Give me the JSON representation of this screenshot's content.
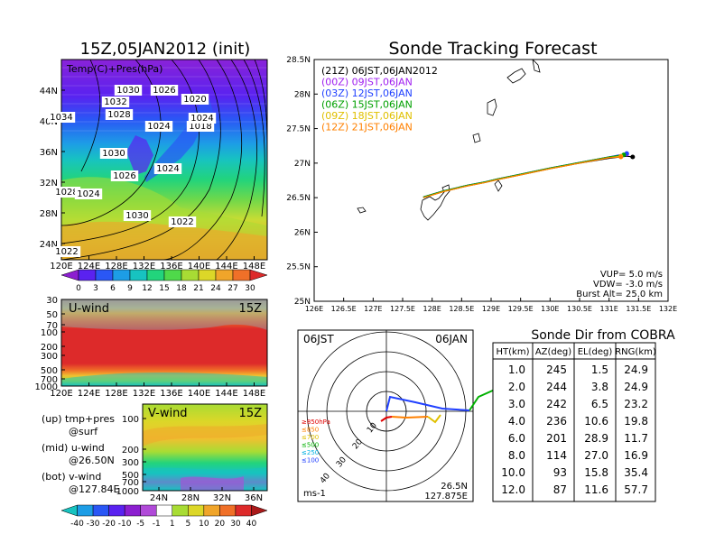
{
  "title_main": "15Z,05JAN2012 (init)",
  "title_track": "Sonde Tracking Forecast",
  "panel_surface": {
    "label": "Temp(C)+Pres(hPa)",
    "lat_ticks": [
      "44N",
      "40N",
      "36N",
      "32N",
      "28N",
      "24N"
    ],
    "lon_ticks": [
      "120E",
      "124E",
      "128E",
      "132E",
      "136E",
      "140E",
      "144E",
      "148E"
    ],
    "isobar_labels": [
      "1030",
      "1026",
      "1020",
      "1032",
      "1028",
      "1034",
      "1024",
      "1018",
      "1030",
      "1026",
      "1024",
      "1030",
      "1028",
      "1024",
      "1024",
      "1022",
      "1022"
    ],
    "colorbar_ticks": [
      "0",
      "3",
      "6",
      "9",
      "12",
      "15",
      "18",
      "21",
      "24",
      "27",
      "30"
    ],
    "colorbar_colors": [
      "#8c1fd0",
      "#5a22f0",
      "#2a57f5",
      "#1d9de6",
      "#17c3c0",
      "#22d47c",
      "#4fd94a",
      "#a8dc34",
      "#dcd728",
      "#f0a52a",
      "#f07028",
      "#dd2a2a"
    ]
  },
  "panel_uwind": {
    "label": "U-wind",
    "time": "15Z",
    "y_ticks": [
      "30",
      "50",
      "70",
      "100",
      "200",
      "300",
      "500",
      "700",
      "1000"
    ],
    "lon_ticks": [
      "120E",
      "124E",
      "128E",
      "132E",
      "136E",
      "140E",
      "144E",
      "148E"
    ]
  },
  "panel_vwind": {
    "label": "V-wind",
    "time": "15Z",
    "y_ticks": [
      "100",
      "200",
      "300",
      "500",
      "700",
      "1000"
    ],
    "lat_ticks": [
      "24N",
      "28N",
      "32N",
      "36N"
    ],
    "colorbar_ticks": [
      "-40",
      "-30",
      "-20",
      "-10",
      "-5",
      "-1",
      "1",
      "5",
      "10",
      "20",
      "30",
      "40"
    ],
    "colorbar_colors": [
      "#17c3c0",
      "#1d9de6",
      "#2a57f5",
      "#5a22f0",
      "#8c1fd0",
      "#b04ad8",
      "#ffffff",
      "#a8dc34",
      "#dcd728",
      "#f0a52a",
      "#f07028",
      "#dd2a2a",
      "#aa1a1a"
    ]
  },
  "side_notes": [
    {
      "a": "(up) tmp+pres",
      "b": "@surf"
    },
    {
      "a": "(mid) u-wind",
      "b": "@26.50N"
    },
    {
      "a": "(bot) v-wind",
      "b": "@127.84E"
    }
  ],
  "track_legend": [
    {
      "text": "(21Z) 06JST,06JAN2012",
      "color": "#000000"
    },
    {
      "text": "(00Z) 09JST,06JAN",
      "color": "#a020f0"
    },
    {
      "text": "(03Z) 12JST,06JAN",
      "color": "#2040ff"
    },
    {
      "text": "(06Z) 15JST,06JAN",
      "color": "#00a000"
    },
    {
      "text": "(09Z) 18JST,06JAN",
      "color": "#e0c000"
    },
    {
      "text": "(12Z) 21JST,06JAN",
      "color": "#ff8000"
    }
  ],
  "track_info": [
    "VUP= 5.0 m/s",
    "VDW= -3.0 m/s",
    "Burst Alt= 25.0 km"
  ],
  "chart_data": {
    "type": "line",
    "x_ticks": [
      "126E",
      "126.5E",
      "127E",
      "127.5E",
      "128E",
      "128.5E",
      "129E",
      "129.5E",
      "130E",
      "130.5E",
      "131E",
      "131.5E",
      "132E"
    ],
    "y_ticks": [
      "28.5N",
      "28N",
      "27.5N",
      "27N",
      "26.5N",
      "26N",
      "25.5N",
      "25N"
    ],
    "xlim": [
      126,
      132
    ],
    "ylim": [
      25,
      28.5
    ],
    "series": [
      {
        "name": "(21Z) 06JST,06JAN2012",
        "color": "#000000",
        "x": [
          127.85,
          128.2,
          128.6,
          128.9,
          129.1,
          129.5,
          130.0,
          130.5,
          131.0,
          131.3,
          131.4
        ],
        "y": [
          26.5,
          26.59,
          26.67,
          26.72,
          26.76,
          26.83,
          26.92,
          27.0,
          27.07,
          27.1,
          27.09
        ]
      },
      {
        "name": "(00Z) 09JST,06JAN",
        "color": "#a020f0",
        "x": [
          127.85,
          128.2,
          128.6,
          128.9,
          129.1,
          129.5,
          130.0,
          130.5,
          131.0,
          131.3
        ],
        "y": [
          26.51,
          26.6,
          26.68,
          26.73,
          26.77,
          26.84,
          26.93,
          27.01,
          27.09,
          27.13
        ]
      },
      {
        "name": "(03Z) 12JST,06JAN",
        "color": "#2040ff",
        "x": [
          127.85,
          128.2,
          128.6,
          128.9,
          129.1,
          129.5,
          130.0,
          130.5,
          131.0,
          131.3
        ],
        "y": [
          26.51,
          26.6,
          26.68,
          26.73,
          26.77,
          26.84,
          26.93,
          27.01,
          27.09,
          27.14
        ]
      },
      {
        "name": "(06Z) 15JST,06JAN",
        "color": "#00a000",
        "x": [
          127.85,
          128.2,
          128.6,
          128.9,
          129.1,
          129.5,
          130.0,
          130.5,
          131.0,
          131.25
        ],
        "y": [
          26.51,
          26.6,
          26.68,
          26.73,
          26.77,
          26.84,
          26.93,
          27.01,
          27.09,
          27.12
        ]
      },
      {
        "name": "(09Z) 18JST,06JAN",
        "color": "#e0c000",
        "x": [
          127.85,
          128.2,
          128.6,
          128.9,
          129.1,
          129.5,
          130.0,
          130.5,
          131.0,
          131.2
        ],
        "y": [
          26.5,
          26.59,
          26.67,
          26.72,
          26.76,
          26.83,
          26.92,
          27.0,
          27.08,
          27.1
        ]
      },
      {
        "name": "(12Z) 21JST,06JAN",
        "color": "#ff8000",
        "x": [
          127.85,
          128.2,
          128.6,
          128.9,
          129.1,
          129.5,
          130.0,
          130.5,
          131.0,
          131.2
        ],
        "y": [
          26.5,
          26.59,
          26.67,
          26.72,
          26.76,
          26.83,
          26.92,
          27.0,
          27.08,
          27.09
        ]
      }
    ]
  },
  "polar": {
    "time_left": "06JST",
    "date_right": "06JAN",
    "ring_labels": [
      "10",
      "20",
      "30",
      "40"
    ],
    "legend": [
      {
        "text": "≥850hPa",
        "color": "#e00000"
      },
      {
        "text": "≤850",
        "color": "#ff8000"
      },
      {
        "text": "≤700",
        "color": "#e0c000"
      },
      {
        "text": "≤500",
        "color": "#00b000"
      },
      {
        "text": "≤250",
        "color": "#00b0e0"
      },
      {
        "text": "≤100",
        "color": "#2040ff"
      }
    ],
    "unit": "ms-1",
    "location_lat": "26.5N",
    "location_lon": "127.875E"
  },
  "sonde_table": {
    "title": "Sonde Dir from COBRA",
    "headers": [
      "HT(km)",
      "AZ(deg)",
      "EL(deg)",
      "RNG(km)"
    ],
    "rows": [
      [
        "1.0",
        "245",
        "1.5",
        "24.9"
      ],
      [
        "2.0",
        "244",
        "3.8",
        "24.9"
      ],
      [
        "3.0",
        "242",
        "6.5",
        "23.2"
      ],
      [
        "4.0",
        "236",
        "10.6",
        "19.8"
      ],
      [
        "6.0",
        "201",
        "28.9",
        "11.7"
      ],
      [
        "8.0",
        "114",
        "27.0",
        "16.9"
      ],
      [
        "10.0",
        "93",
        "15.8",
        "35.4"
      ],
      [
        "12.0",
        "87",
        "11.6",
        "57.7"
      ]
    ]
  }
}
